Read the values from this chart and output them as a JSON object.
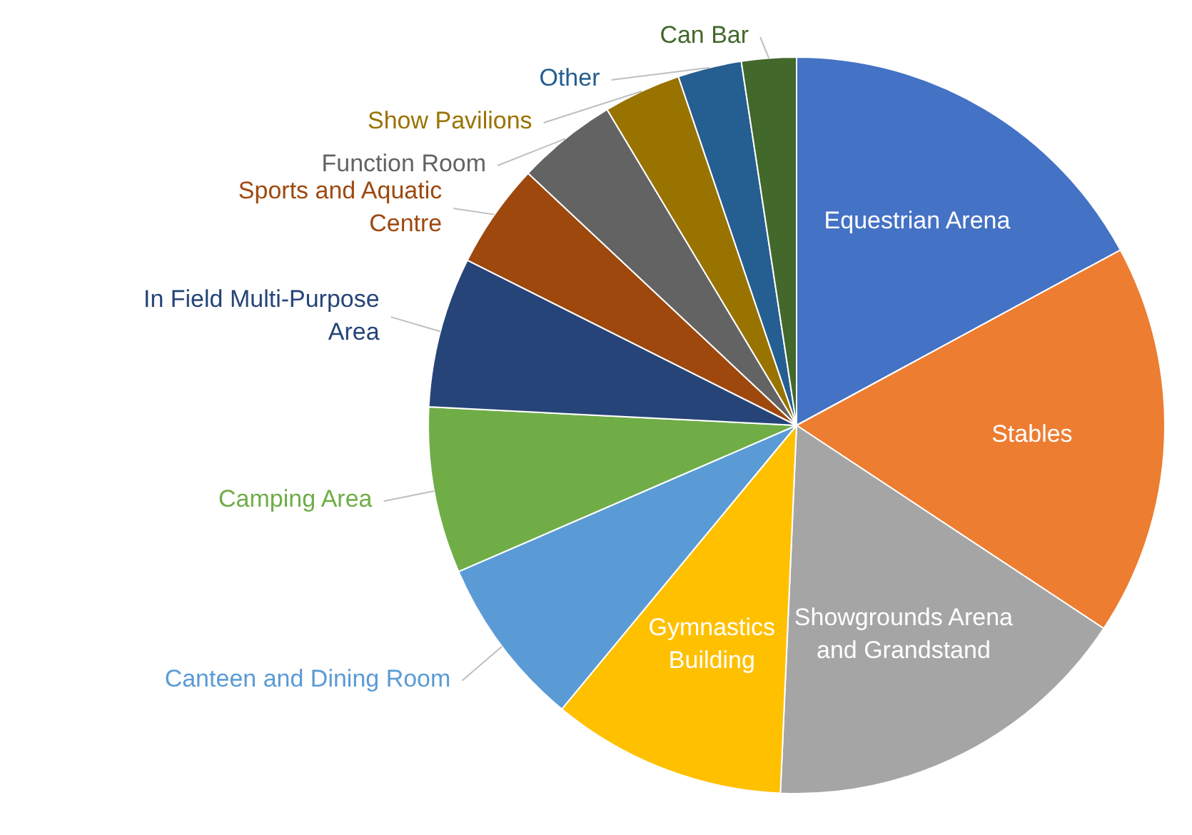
{
  "chart_data": {
    "type": "pie",
    "categories": [
      "Equestrian Arena",
      "Stables",
      "Showgrounds Arena and Grandstand",
      "Gymnastics Building",
      "Canteen and Dining Room",
      "Camping Area",
      "In Field Multi-Purpose Area",
      "Sports and Aquatic Centre",
      "Function Room",
      "Show Pavilions",
      "Other",
      "Can Bar"
    ],
    "values": [
      17.1,
      17.2,
      16.4,
      10.3,
      7.5,
      7.3,
      6.6,
      4.6,
      4.4,
      3.4,
      2.8,
      2.4
    ],
    "colors": [
      "#4472c4",
      "#ed7d31",
      "#a5a5a5",
      "#ffc000",
      "#5b9bd5",
      "#70ad47",
      "#264478",
      "#9e480e",
      "#636363",
      "#997300",
      "#255e91",
      "#43682b"
    ]
  }
}
